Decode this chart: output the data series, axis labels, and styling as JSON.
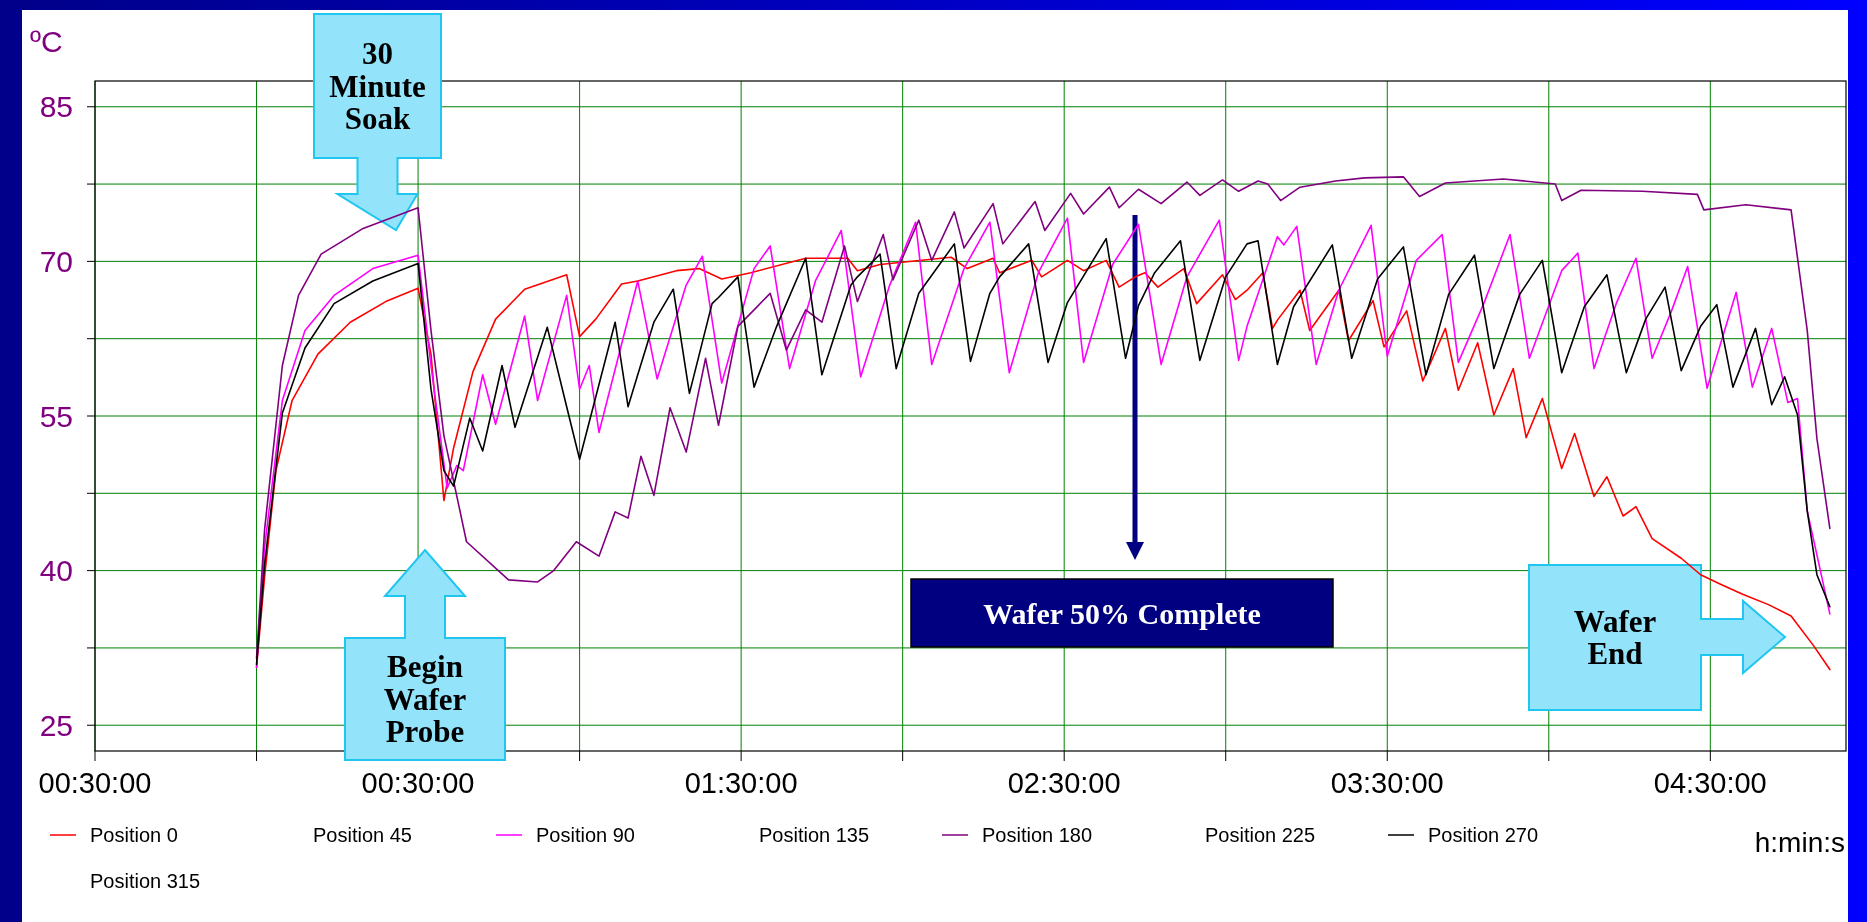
{
  "chart_data": {
    "type": "line",
    "ylabel": "ºC",
    "xlabel": "h:min:s",
    "xlim": [
      -0.5,
      4.92
    ],
    "ylim": [
      22.5,
      87.5
    ],
    "xticks": [
      {
        "value": -0.5,
        "label": "00:30:00"
      },
      {
        "value": 0,
        "label": null
      },
      {
        "value": 0.5,
        "label": "00:30:00"
      },
      {
        "value": 1,
        "label": null
      },
      {
        "value": 1.5,
        "label": "01:30:00"
      },
      {
        "value": 2,
        "label": null
      },
      {
        "value": 2.5,
        "label": "02:30:00"
      },
      {
        "value": 3,
        "label": null
      },
      {
        "value": 3.5,
        "label": "03:30:00"
      },
      {
        "value": 4,
        "label": null
      },
      {
        "value": 4.5,
        "label": "04:30:00"
      }
    ],
    "yticks": [
      25,
      {
        "value": 32.5,
        "label": null
      },
      40,
      {
        "value": 47.5,
        "label": null
      },
      55,
      {
        "value": 62.5,
        "label": null
      },
      70,
      {
        "value": 77.5,
        "label": null
      },
      85
    ],
    "grid": true,
    "legend": "bottom",
    "annotations": [
      "30\nMinute\nSoak",
      "Begin\nWafer\nProbe",
      "Wafer 50% Complete",
      "Wafer\nEnd"
    ],
    "series": [
      {
        "name": "Position 0",
        "color": "#ff0000",
        "x": [
          0,
          0.025,
          0.06,
          0.11,
          0.19,
          0.29,
          0.4,
          0.5,
          0.54,
          0.58,
          0.61,
          0.67,
          0.74,
          0.83,
          0.96,
          1.0,
          1.05,
          1.13,
          1.18,
          1.3,
          1.37,
          1.44,
          1.53,
          1.7,
          1.83,
          1.86,
          1.93,
          2.15,
          2.2,
          2.28,
          2.3,
          2.4,
          2.43,
          2.51,
          2.56,
          2.63,
          2.67,
          2.72,
          2.75,
          2.79,
          2.87,
          2.91,
          2.99,
          3.03,
          3.066,
          3.115,
          3.145,
          3.16,
          3.23,
          3.26,
          3.35,
          3.38,
          3.456,
          3.49,
          3.56,
          3.61,
          3.68,
          3.72,
          3.78,
          3.83,
          3.89,
          3.93,
          3.98,
          4.04,
          4.08,
          4.14,
          4.18,
          4.23,
          4.27,
          4.32,
          4.41,
          4.47,
          4.53,
          4.6,
          4.68,
          4.75,
          4.82,
          4.87
        ],
        "values": [
          30.6,
          39.4,
          49.7,
          56.5,
          61,
          64.1,
          66.1,
          67.4,
          61,
          46.8,
          51.9,
          59.3,
          64.4,
          67.3,
          68.7,
          62.7,
          64.4,
          67.8,
          68.1,
          69.1,
          69.3,
          68.3,
          68.9,
          70.3,
          70.3,
          69.1,
          69.7,
          70.4,
          69.3,
          70.3,
          68.9,
          70.1,
          68.5,
          70.1,
          69.1,
          70.1,
          67.5,
          68.5,
          68.9,
          67.5,
          69.3,
          65.9,
          68.7,
          66.3,
          67.2,
          68.9,
          63.5,
          64.3,
          67.2,
          63.3,
          67.2,
          62.3,
          66.2,
          61.7,
          65.2,
          58.4,
          63.5,
          57.5,
          62.1,
          55.1,
          59.6,
          52.9,
          56.7,
          49.9,
          53.3,
          47.2,
          49.1,
          45.3,
          46.2,
          43.1,
          41.2,
          39.6,
          38.7,
          37.7,
          36.7,
          35.6,
          32.7,
          30.4
        ]
      },
      {
        "name": "Position 45"
      },
      {
        "name": "Position 90",
        "color": "#ff00ff",
        "x": [
          0,
          0.025,
          0.08,
          0.15,
          0.24,
          0.36,
          0.5,
          0.54,
          0.59,
          0.62,
          0.64,
          0.7,
          0.74,
          0.83,
          0.87,
          0.96,
          1.0,
          1.03,
          1.06,
          1.18,
          1.24,
          1.33,
          1.38,
          1.44,
          1.54,
          1.59,
          1.65,
          1.73,
          1.81,
          1.87,
          1.96,
          2.04,
          2.09,
          2.19,
          2.27,
          2.33,
          2.42,
          2.51,
          2.56,
          2.65,
          2.73,
          2.8,
          2.88,
          2.98,
          3.04,
          3.066,
          3.16,
          3.18,
          3.22,
          3.28,
          3.35,
          3.45,
          3.5,
          3.59,
          3.67,
          3.72,
          3.8,
          3.88,
          3.94,
          4.04,
          4.09,
          4.14,
          4.21,
          4.27,
          4.32,
          4.38,
          4.43,
          4.49,
          4.58,
          4.63,
          4.69,
          4.74,
          4.77,
          4.8,
          4.87
        ],
        "values": [
          30.6,
          42.3,
          56.5,
          63.3,
          66.7,
          69.3,
          70.6,
          59.9,
          48,
          50.2,
          49.7,
          59,
          54.2,
          64.7,
          56.5,
          66.7,
          57.6,
          59.9,
          53.4,
          68.1,
          58.6,
          67.7,
          70.5,
          58.2,
          69.3,
          71.5,
          59.6,
          68.1,
          73,
          58.8,
          67.7,
          73.8,
          60,
          69.3,
          73.8,
          59.2,
          68.9,
          74.2,
          60.2,
          69.7,
          73.6,
          60,
          68.5,
          74,
          60.4,
          63.7,
          72.4,
          71.6,
          73.4,
          60,
          67.2,
          73.5,
          60.8,
          70.1,
          72.6,
          60.2,
          66,
          72.6,
          60.6,
          69.1,
          70.8,
          59.6,
          66,
          70.3,
          60.6,
          65.2,
          69.5,
          57.7,
          67,
          57.8,
          63.5,
          56.3,
          56.7,
          45.8,
          35.8
        ]
      },
      {
        "name": "Position 135"
      },
      {
        "name": "Position 180",
        "color": "#800080",
        "x": [
          0,
          0.025,
          0.08,
          0.13,
          0.2,
          0.33,
          0.5,
          0.54,
          0.58,
          0.65,
          0.78,
          0.87,
          0.92,
          0.99,
          1.06,
          1.11,
          1.15,
          1.19,
          1.23,
          1.28,
          1.33,
          1.39,
          1.43,
          1.49,
          1.54,
          1.59,
          1.64,
          1.7,
          1.75,
          1.82,
          1.86,
          1.94,
          1.97,
          2.05,
          2.09,
          2.16,
          2.19,
          2.28,
          2.31,
          2.41,
          2.44,
          2.52,
          2.56,
          2.64,
          2.67,
          2.73,
          2.8,
          2.88,
          2.92,
          2.99,
          3.04,
          3.1,
          3.13,
          3.17,
          3.23,
          3.34,
          3.43,
          3.55,
          3.6,
          3.68,
          3.86,
          4.02,
          4.04,
          4.1,
          4.29,
          4.46,
          4.48,
          4.61,
          4.75,
          4.8,
          4.83,
          4.87
        ],
        "values": [
          31.5,
          44,
          59.9,
          66.7,
          70.7,
          73.2,
          75.2,
          63.3,
          53.1,
          42.8,
          39.1,
          38.9,
          40,
          42.8,
          41.4,
          45.7,
          45.1,
          51.1,
          47.3,
          55.8,
          51.5,
          60.6,
          54.1,
          63.7,
          65.3,
          66.9,
          61.4,
          65.3,
          64.1,
          71.5,
          66.1,
          72.6,
          68.2,
          74,
          70.1,
          74.8,
          71.3,
          75.6,
          71.7,
          75.8,
          73,
          76.6,
          74.6,
          77.2,
          75.2,
          77,
          75.6,
          77.7,
          76.4,
          77.9,
          76.8,
          77.8,
          77.5,
          75.9,
          77.2,
          77.8,
          78.1,
          78.2,
          76.3,
          77.6,
          78,
          77.5,
          75.9,
          76.9,
          76.8,
          76.5,
          75,
          75.5,
          75,
          63.3,
          52.8,
          44.1
        ]
      },
      {
        "name": "Position 225"
      },
      {
        "name": "Position 270",
        "color": "#000000",
        "x": [
          0,
          0.025,
          0.08,
          0.15,
          0.24,
          0.36,
          0.5,
          0.54,
          0.58,
          0.61,
          0.66,
          0.7,
          0.76,
          0.8,
          0.9,
          0.96,
          1.0,
          1.11,
          1.15,
          1.18,
          1.23,
          1.29,
          1.34,
          1.41,
          1.43,
          1.49,
          1.54,
          1.61,
          1.7,
          1.75,
          1.84,
          1.86,
          1.93,
          1.98,
          2.05,
          2.16,
          2.21,
          2.27,
          2.3,
          2.39,
          2.45,
          2.51,
          2.63,
          2.69,
          2.73,
          2.78,
          2.86,
          2.92,
          3.0,
          3.066,
          3.1,
          3.16,
          3.21,
          3.33,
          3.39,
          3.47,
          3.55,
          3.62,
          3.69,
          3.77,
          3.83,
          3.91,
          3.98,
          4.04,
          4.11,
          4.18,
          4.24,
          4.3,
          4.36,
          4.41,
          4.47,
          4.52,
          4.57,
          4.64,
          4.69,
          4.73,
          4.77,
          4.8,
          4.83,
          4.87
        ],
        "values": [
          30.9,
          40.6,
          55.3,
          61.6,
          65.9,
          68.1,
          69.8,
          57.6,
          49.7,
          48.2,
          54.8,
          51.6,
          59.9,
          53.9,
          63.6,
          55.9,
          50.8,
          64.1,
          55.9,
          59,
          64.1,
          67.3,
          57.2,
          65.9,
          66.5,
          68.5,
          57.8,
          63.7,
          70.3,
          59,
          67.7,
          68.5,
          70.7,
          59.6,
          66.9,
          71.7,
          60.3,
          66.9,
          68.5,
          71.7,
          60.2,
          66,
          72.2,
          60.6,
          65.7,
          68.9,
          72,
          60.4,
          68.5,
          71.7,
          72,
          60,
          65.6,
          71.6,
          60.6,
          68.3,
          71.4,
          59,
          66.8,
          70.6,
          59.6,
          66.8,
          70.1,
          59.2,
          65.6,
          68.7,
          59.2,
          64.4,
          67.5,
          59.4,
          63.7,
          65.8,
          57.8,
          63.5,
          56.1,
          58.8,
          55.1,
          45.8,
          39.6,
          36.5
        ]
      },
      {
        "name": "Position 315"
      }
    ]
  }
}
